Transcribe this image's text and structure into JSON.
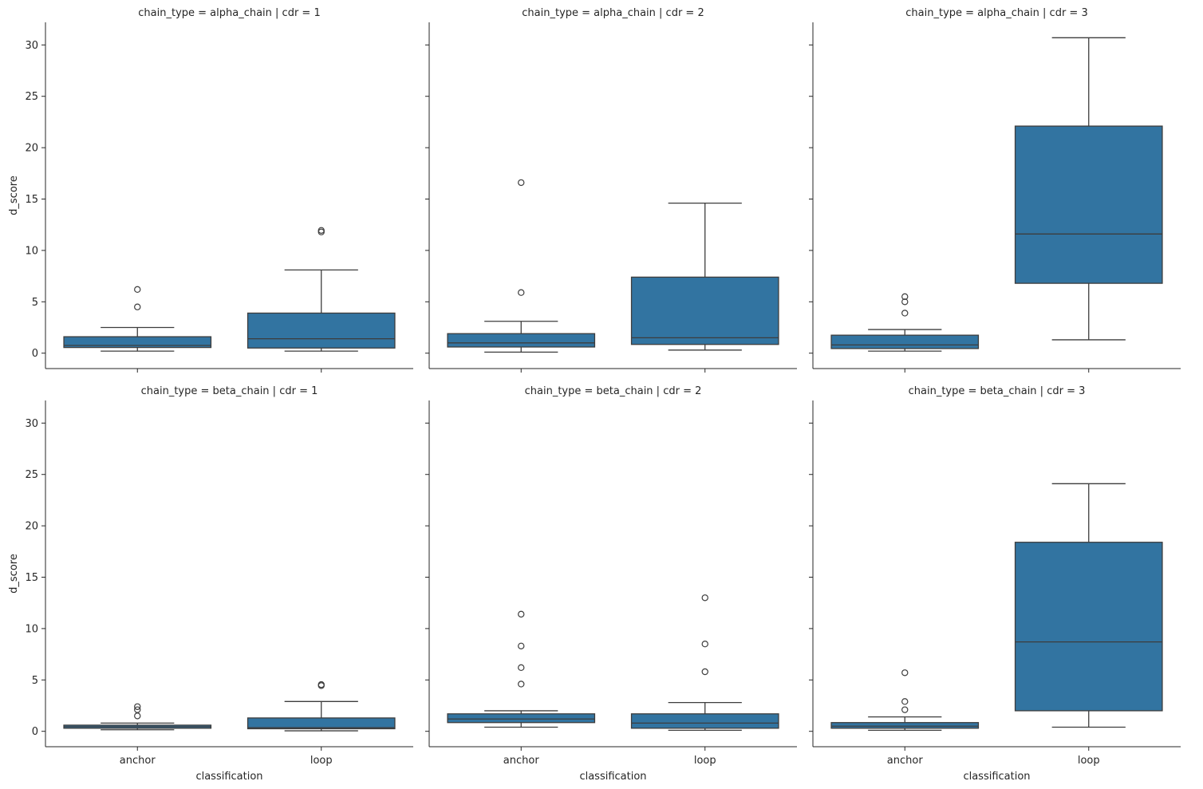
{
  "chart_data": {
    "type": "box",
    "shared_y_axis": {
      "label": "d_score",
      "ylim": [
        -1.5,
        32.2
      ],
      "ticks": [
        0,
        5,
        10,
        15,
        20,
        25,
        30
      ],
      "tick_labels": [
        "0",
        "5",
        "10",
        "15",
        "20",
        "25",
        "30"
      ]
    },
    "x_axis": {
      "label": "classification",
      "categories": [
        "anchor",
        "loop"
      ]
    },
    "box_color": "#3274a1",
    "line_color": "#3d3d3d",
    "panels": [
      {
        "title": "chain_type = alpha_chain | cdr = 1",
        "boxes": [
          {
            "category": "anchor",
            "whisker_low": 0.2,
            "q1": 0.55,
            "median": 0.75,
            "q3": 1.6,
            "whisker_high": 2.5,
            "outliers": [
              4.5,
              6.2
            ]
          },
          {
            "category": "loop",
            "whisker_low": 0.2,
            "q1": 0.5,
            "median": 1.4,
            "q3": 3.9,
            "whisker_high": 8.1,
            "outliers": [
              11.8,
              11.95
            ]
          }
        ]
      },
      {
        "title": "chain_type = alpha_chain | cdr = 2",
        "boxes": [
          {
            "category": "anchor",
            "whisker_low": 0.1,
            "q1": 0.6,
            "median": 1.0,
            "q3": 1.9,
            "whisker_high": 3.1,
            "outliers": [
              5.9,
              16.6
            ]
          },
          {
            "category": "loop",
            "whisker_low": 0.3,
            "q1": 0.85,
            "median": 1.5,
            "q3": 7.4,
            "whisker_high": 14.6,
            "outliers": []
          }
        ]
      },
      {
        "title": "chain_type = alpha_chain | cdr = 3",
        "boxes": [
          {
            "category": "anchor",
            "whisker_low": 0.2,
            "q1": 0.45,
            "median": 0.8,
            "q3": 1.75,
            "whisker_high": 2.3,
            "outliers": [
              3.9,
              5.0,
              5.5
            ]
          },
          {
            "category": "loop",
            "whisker_low": 1.3,
            "q1": 6.8,
            "median": 11.6,
            "q3": 22.1,
            "whisker_high": 30.7,
            "outliers": []
          }
        ]
      },
      {
        "title": "chain_type = beta_chain | cdr = 1",
        "boxes": [
          {
            "category": "anchor",
            "whisker_low": 0.15,
            "q1": 0.3,
            "median": 0.45,
            "q3": 0.6,
            "whisker_high": 0.8,
            "outliers": [
              1.5,
              2.1,
              2.4
            ]
          },
          {
            "category": "loop",
            "whisker_low": 0.05,
            "q1": 0.25,
            "median": 0.35,
            "q3": 1.3,
            "whisker_high": 2.9,
            "outliers": [
              4.45,
              4.55
            ]
          }
        ]
      },
      {
        "title": "chain_type = beta_chain | cdr = 2",
        "boxes": [
          {
            "category": "anchor",
            "whisker_low": 0.4,
            "q1": 0.85,
            "median": 1.2,
            "q3": 1.7,
            "whisker_high": 2.0,
            "outliers": [
              4.6,
              6.2,
              8.3,
              11.4
            ]
          },
          {
            "category": "loop",
            "whisker_low": 0.1,
            "q1": 0.3,
            "median": 0.8,
            "q3": 1.7,
            "whisker_high": 2.8,
            "outliers": [
              5.8,
              8.5,
              13.0
            ]
          }
        ]
      },
      {
        "title": "chain_type = beta_chain | cdr = 3",
        "boxes": [
          {
            "category": "anchor",
            "whisker_low": 0.1,
            "q1": 0.3,
            "median": 0.5,
            "q3": 0.85,
            "whisker_high": 1.4,
            "outliers": [
              2.1,
              2.9,
              5.7
            ]
          },
          {
            "category": "loop",
            "whisker_low": 0.4,
            "q1": 2.0,
            "median": 8.7,
            "q3": 18.4,
            "whisker_high": 24.1,
            "outliers": []
          }
        ]
      }
    ]
  }
}
